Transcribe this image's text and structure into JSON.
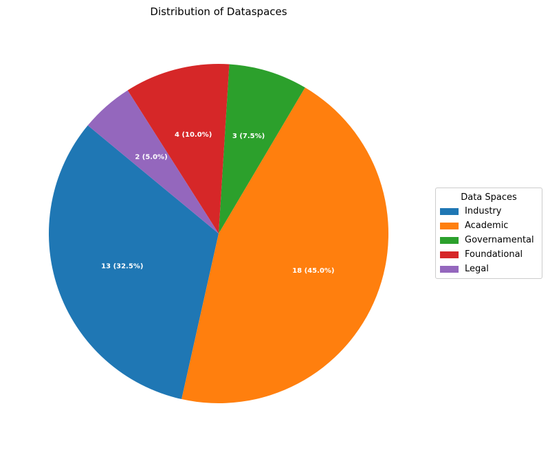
{
  "chart_data": {
    "type": "pie",
    "title": "Distribution of Dataspaces",
    "legend_title": "Data Spaces",
    "legend_position": "right",
    "slices": [
      {
        "label": "Industry",
        "value": 13,
        "percent": 32.5,
        "display": "13 (32.5%)",
        "color": "#1f77b4"
      },
      {
        "label": "Academic",
        "value": 18,
        "percent": 45.0,
        "display": "18 (45.0%)",
        "color": "#ff7f0e"
      },
      {
        "label": "Governamental",
        "value": 3,
        "percent": 7.5,
        "display": "3 (7.5%)",
        "color": "#2ca02c"
      },
      {
        "label": "Foundational",
        "value": 4,
        "percent": 10.0,
        "display": "4 (10.0%)",
        "color": "#d62728"
      },
      {
        "label": "Legal",
        "value": 2,
        "percent": 5.0,
        "display": "2 (5.0%)",
        "color": "#9467bd"
      }
    ]
  }
}
